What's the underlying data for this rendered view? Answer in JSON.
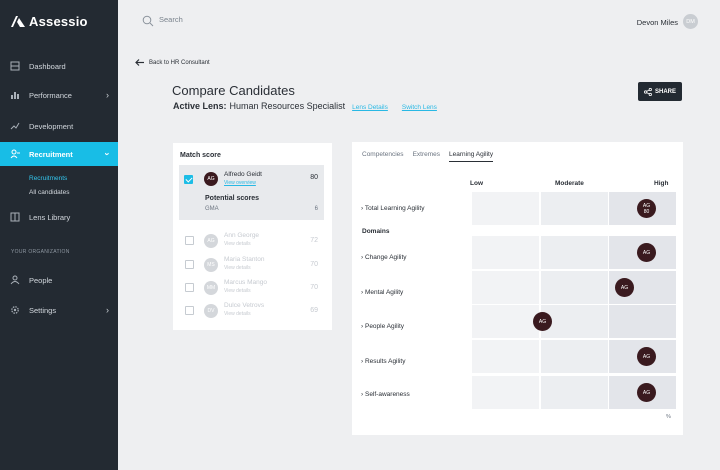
{
  "app": {
    "name": "Assessio"
  },
  "sidebar": {
    "items": [
      {
        "label": "Dashboard",
        "icon": "dashboard-icon"
      },
      {
        "label": "Performance",
        "icon": "bar-chart-icon"
      },
      {
        "label": "Development",
        "icon": "trend-icon"
      },
      {
        "label": "Recruitment",
        "icon": "recruit-icon",
        "active": true
      },
      {
        "label": "Lens Library",
        "icon": "book-icon"
      },
      {
        "label": "People",
        "icon": "people-icon"
      },
      {
        "label": "Settings",
        "icon": "gear-icon"
      }
    ],
    "sub_items": [
      {
        "label": "Recruitments",
        "active": true
      },
      {
        "label": "All candidates",
        "active": false
      }
    ],
    "org_label": "YOUR ORGANIZATION"
  },
  "topbar": {
    "search_placeholder": "Search",
    "user_name": "Devon Miles",
    "user_initials": "DM"
  },
  "header": {
    "back_label": "Back to HR Consultant",
    "title": "Compare Candidates",
    "active_lens_label": "Active Lens:",
    "active_lens_value": "Human Resources Specialist",
    "lens_details_link": "Lens Details",
    "switch_lens_link": "Switch Lens",
    "share_label": "SHARE"
  },
  "match": {
    "label": "Match score",
    "selected": {
      "initials": "AG",
      "name": "Alfredo Geidt",
      "link": "View overview",
      "score": "80",
      "potential_label": "Potential scores",
      "gma_label": "GMA",
      "gma_value": "6"
    },
    "others": [
      {
        "initials": "AG",
        "name": "Ann George",
        "link": "View details",
        "score": "72"
      },
      {
        "initials": "MS",
        "name": "Maria Stanton",
        "link": "View details",
        "score": "70"
      },
      {
        "initials": "MM",
        "name": "Marcus Mango",
        "link": "View details",
        "score": "70"
      },
      {
        "initials": "DV",
        "name": "Dulce Vetrovs",
        "link": "View details",
        "score": "69"
      }
    ]
  },
  "comparison": {
    "tabs": [
      "Competencies",
      "Extremes",
      "Learning Agility"
    ],
    "active_tab": "Learning Agility",
    "columns": [
      "Low",
      "Moderate",
      "High"
    ],
    "domains_label": "Domains",
    "total_row": {
      "label": "Total Learning Agility",
      "level": "High",
      "marker": "AG 80"
    },
    "rows": [
      {
        "label": "Change Agility",
        "level": "High",
        "marker": "AG"
      },
      {
        "label": "Mental Agility",
        "level": "High",
        "marker": "AG"
      },
      {
        "label": "People Agility",
        "level": "Moderate",
        "marker": "AG"
      },
      {
        "label": "Results Agility",
        "level": "High",
        "marker": "AG"
      },
      {
        "label": "Self-awareness",
        "level": "High",
        "marker": "AG"
      }
    ],
    "unit": "%"
  }
}
